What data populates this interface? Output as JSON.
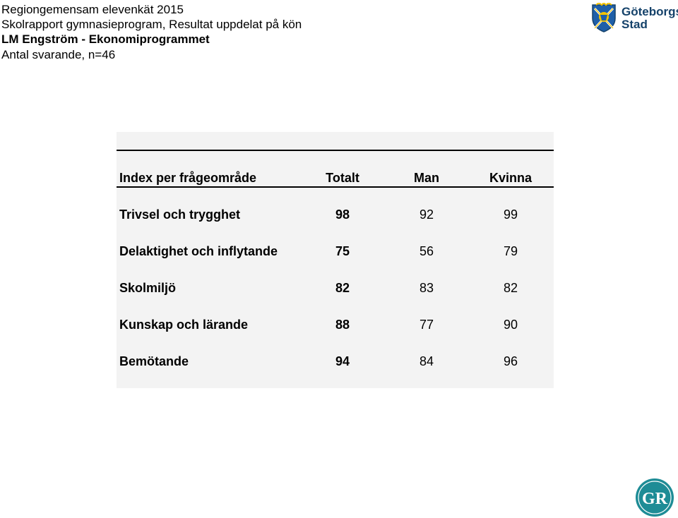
{
  "header": {
    "line1": "Regiongemensam elevenkät 2015",
    "line2": "Skolrapport gymnasieprogram, Resultat uppdelat på kön",
    "line3": "LM Engström - Ekonomiprogrammet",
    "line4": "Antal svarande, n=46"
  },
  "logo": {
    "line1": "Göteborgs",
    "line2": "Stad",
    "color": "#15426a"
  },
  "table": {
    "columns": [
      "Index per frågeområde",
      "Totalt",
      "Man",
      "Kvinna"
    ],
    "rows": [
      {
        "label": "Trivsel och trygghet",
        "totalt": "98",
        "man": "92",
        "kvinna": "99"
      },
      {
        "label": "Delaktighet och inflytande",
        "totalt": "75",
        "man": "56",
        "kvinna": "79"
      },
      {
        "label": "Skolmiljö",
        "totalt": "82",
        "man": "83",
        "kvinna": "82"
      },
      {
        "label": "Kunskap och lärande",
        "totalt": "88",
        "man": "77",
        "kvinna": "90"
      },
      {
        "label": "Bemötande",
        "totalt": "94",
        "man": "84",
        "kvinna": "96"
      }
    ],
    "background": "#f3f3f3"
  },
  "gr_logo": {
    "text": "GR",
    "color": "#1e8c96"
  }
}
